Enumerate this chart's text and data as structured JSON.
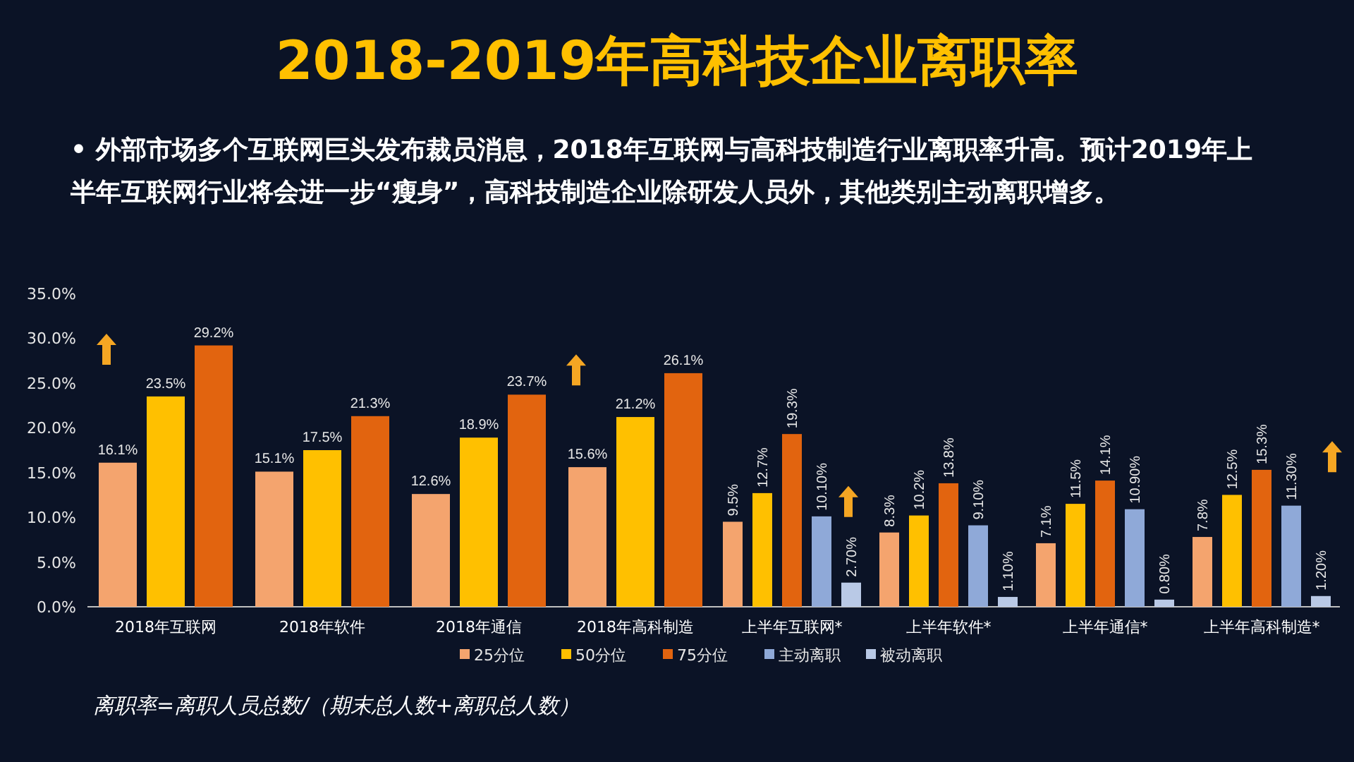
{
  "chart_data": {
    "type": "bar",
    "title": "2018-2019年高科技企业离职率",
    "subtitle": "• 外部市场多个互联网巨头发布裁员消息，2018年互联网与高科技制造行业离职率升高。预计2019年上半年互联网行业将会进一步“瘦身”，高科技制造企业除研发人员外，其他类别主动离职增多。",
    "categories": [
      "2018年互联网",
      "2018年软件",
      "2018年通信",
      "2018年高科制造",
      "上半年互联网*",
      "上半年软件*",
      "上半年通信*",
      "上半年高科制造*"
    ],
    "series": [
      {
        "name": "25分位",
        "color": "#f4a46e",
        "values": [
          16.1,
          15.1,
          12.6,
          15.6,
          9.5,
          8.3,
          7.1,
          7.8
        ],
        "value_labels": [
          "16.1%",
          "15.1%",
          "12.6%",
          "15.6%",
          "9.5%",
          "8.3%",
          "7.1%",
          "7.8%"
        ]
      },
      {
        "name": "50分位",
        "color": "#ffc000",
        "values": [
          23.5,
          17.5,
          18.9,
          21.2,
          12.7,
          10.2,
          11.5,
          12.5
        ],
        "value_labels": [
          "23.5%",
          "17.5%",
          "18.9%",
          "21.2%",
          "12.7%",
          "10.2%",
          "11.5%",
          "12.5%"
        ]
      },
      {
        "name": "75分位",
        "color": "#e2640f",
        "values": [
          29.2,
          21.3,
          23.7,
          26.1,
          19.3,
          13.8,
          14.1,
          15.3
        ],
        "value_labels": [
          "29.2%",
          "21.3%",
          "23.7%",
          "26.1%",
          "19.3%",
          "13.8%",
          "14.1%",
          "15.3%"
        ]
      },
      {
        "name": "主动离职",
        "color": "#8fa9d8",
        "values": [
          null,
          null,
          null,
          null,
          10.1,
          9.1,
          10.9,
          11.3
        ],
        "value_labels": [
          null,
          null,
          null,
          null,
          "10.10%",
          "9.10%",
          "10.90%",
          "11.30%"
        ]
      },
      {
        "name": "被动离职",
        "color": "#b9c9e6",
        "values": [
          null,
          null,
          null,
          null,
          2.7,
          1.1,
          0.8,
          1.2
        ],
        "value_labels": [
          null,
          null,
          null,
          null,
          "2.70%",
          "1.10%",
          "0.80%",
          "1.20%"
        ]
      }
    ],
    "ylim": [
      0,
      35
    ],
    "yticks": [
      {
        "value": 0,
        "label": "0.0%"
      },
      {
        "value": 5,
        "label": "5.0%"
      },
      {
        "value": 10,
        "label": "10.0%"
      },
      {
        "value": 15,
        "label": "15.0%"
      },
      {
        "value": 20,
        "label": "20.0%"
      },
      {
        "value": 25,
        "label": "25.0%"
      },
      {
        "value": 30,
        "label": "30.0%"
      },
      {
        "value": 35,
        "label": "35.0%"
      }
    ],
    "legend": "bottom",
    "annotations": [
      "离职率=离职人员总数/（期末总人数+离职总人数）"
    ]
  }
}
